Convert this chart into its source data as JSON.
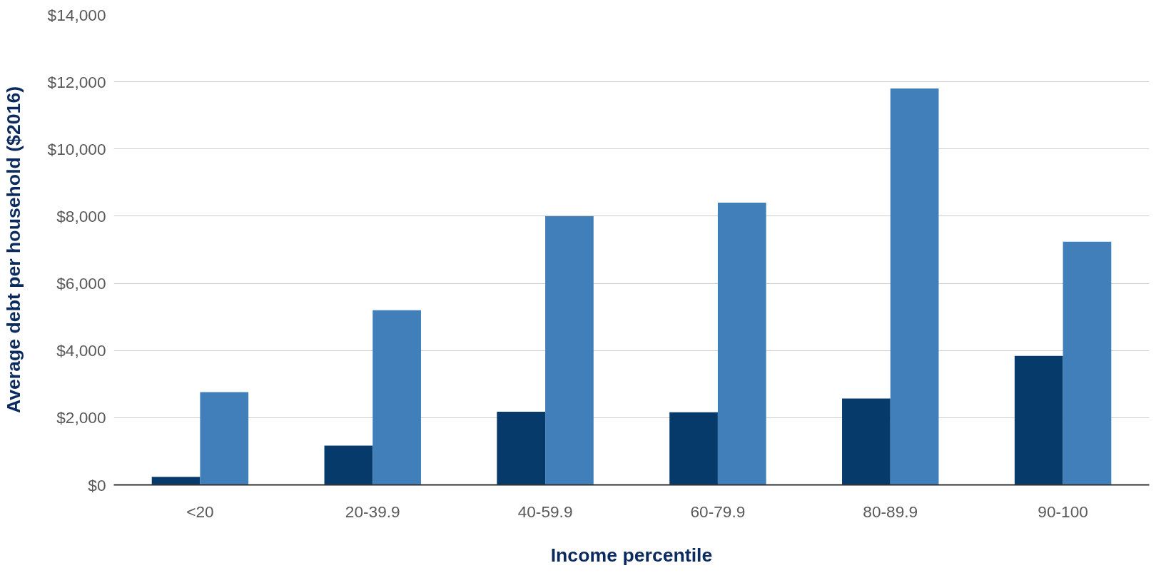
{
  "chart_data": {
    "type": "bar",
    "xlabel": "Income percentile",
    "ylabel": "Average debt per household ($2016)",
    "categories": [
      "<20",
      "20-39.9",
      "40-59.9",
      "60-79.9",
      "80-89.9",
      "90-100"
    ],
    "series": [
      {
        "color": "#063a6b",
        "values": [
          240,
          1170,
          2180,
          2160,
          2570,
          3840
        ]
      },
      {
        "color": "#417fba",
        "values": [
          2760,
          5200,
          8000,
          8400,
          11800,
          7240
        ]
      }
    ],
    "ylim": [
      0,
      14000
    ],
    "yticks": [
      {
        "value": 0,
        "label": "$0"
      },
      {
        "value": 2000,
        "label": "$2,000"
      },
      {
        "value": 4000,
        "label": "$4,000"
      },
      {
        "value": 6000,
        "label": "$6,000"
      },
      {
        "value": 8000,
        "label": "$8,000"
      },
      {
        "value": 10000,
        "label": "$10,000"
      },
      {
        "value": 12000,
        "label": "$12,000"
      },
      {
        "value": 14000,
        "label": "$14,000"
      }
    ],
    "grid": "y"
  }
}
